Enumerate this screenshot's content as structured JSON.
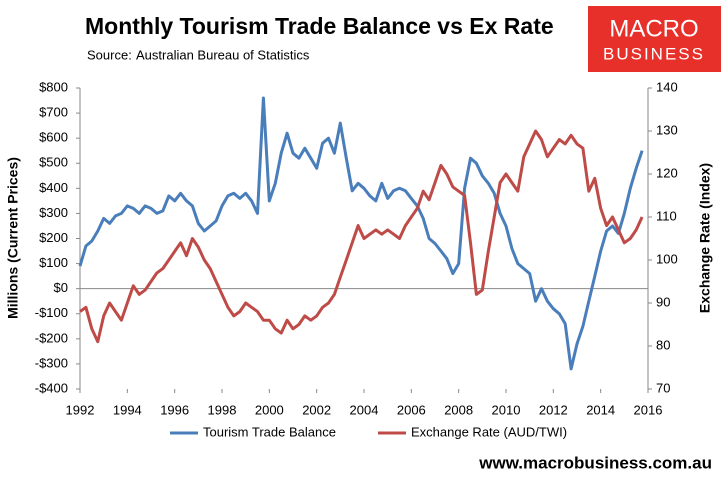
{
  "chart_data": {
    "type": "line",
    "title": "Monthly Tourism Trade Balance vs Ex Rate",
    "source_label": "Source:",
    "source": "Australian Bureau of Statistics",
    "logo": [
      "MACRO",
      "BUSINESS"
    ],
    "footer": "www.macrobusiness.com.au",
    "y_label": "Millions (Current Prices)",
    "y2_label": "Exchange Rate (Index)",
    "xlim": [
      1992,
      2016
    ],
    "xticks": [
      1992,
      1994,
      1996,
      1998,
      2000,
      2002,
      2004,
      2006,
      2008,
      2010,
      2012,
      2014,
      2016
    ],
    "ylim": [
      -400,
      800
    ],
    "yticks": [
      {
        "value": -400,
        "label": "-$400"
      },
      {
        "value": -300,
        "label": "-$300"
      },
      {
        "value": -200,
        "label": "-$200"
      },
      {
        "value": -100,
        "label": "-$100"
      },
      {
        "value": 0,
        "label": "$0"
      },
      {
        "value": 100,
        "label": "$100"
      },
      {
        "value": 200,
        "label": "$200"
      },
      {
        "value": 300,
        "label": "$300"
      },
      {
        "value": 400,
        "label": "$400"
      },
      {
        "value": 500,
        "label": "$500"
      },
      {
        "value": 600,
        "label": "$600"
      },
      {
        "value": 700,
        "label": "$700"
      },
      {
        "value": 800,
        "label": "$800"
      }
    ],
    "y2lim": [
      70,
      140
    ],
    "y2ticks": [
      70,
      80,
      90,
      100,
      110,
      120,
      130,
      140
    ],
    "legend": "bottom",
    "x": [
      1992,
      1992.25,
      1992.5,
      1992.75,
      1993,
      1993.25,
      1993.5,
      1993.75,
      1994,
      1994.25,
      1994.5,
      1994.75,
      1995,
      1995.25,
      1995.5,
      1995.75,
      1996,
      1996.25,
      1996.5,
      1996.75,
      1997,
      1997.25,
      1997.5,
      1997.75,
      1998,
      1998.25,
      1998.5,
      1998.75,
      1999,
      1999.25,
      1999.5,
      1999.75,
      2000,
      2000.25,
      2000.5,
      2000.75,
      2001,
      2001.25,
      2001.5,
      2001.75,
      2002,
      2002.25,
      2002.5,
      2002.75,
      2003,
      2003.25,
      2003.5,
      2003.75,
      2004,
      2004.25,
      2004.5,
      2004.75,
      2005,
      2005.25,
      2005.5,
      2005.75,
      2006,
      2006.25,
      2006.5,
      2006.75,
      2007,
      2007.25,
      2007.5,
      2007.75,
      2008,
      2008.25,
      2008.5,
      2008.75,
      2009,
      2009.25,
      2009.5,
      2009.75,
      2010,
      2010.25,
      2010.5,
      2010.75,
      2011,
      2011.25,
      2011.5,
      2011.75,
      2012,
      2012.25,
      2012.5,
      2012.75,
      2013,
      2013.25,
      2013.5,
      2013.75,
      2014,
      2014.25,
      2014.5,
      2014.75,
      2015,
      2015.25,
      2015.5,
      2015.75
    ],
    "series": [
      {
        "name": "Tourism Trade Balance",
        "color": "#4a7ebb",
        "values": [
          90,
          170,
          190,
          230,
          280,
          260,
          290,
          300,
          330,
          320,
          300,
          330,
          320,
          300,
          310,
          370,
          350,
          380,
          350,
          330,
          260,
          230,
          250,
          270,
          330,
          370,
          380,
          360,
          380,
          350,
          300,
          760,
          350,
          420,
          540,
          620,
          540,
          520,
          560,
          520,
          480,
          580,
          600,
          540,
          660,
          520,
          390,
          420,
          400,
          370,
          350,
          420,
          360,
          390,
          400,
          390,
          360,
          330,
          280,
          200,
          180,
          150,
          120,
          60,
          100,
          400,
          520,
          500,
          450,
          420,
          380,
          300,
          250,
          160,
          100,
          80,
          60,
          -50,
          0,
          -50,
          -80,
          -100,
          -140,
          -320,
          -220,
          -150,
          -50,
          50,
          150,
          230,
          250,
          220,
          300,
          400,
          480,
          550
        ]
      },
      {
        "name": "Exchange Rate (AUD/TWI)",
        "color": "#be4b48",
        "axis": "y2",
        "values": [
          88,
          89,
          84,
          81,
          87,
          90,
          88,
          86,
          90,
          94,
          92,
          93,
          95,
          97,
          98,
          100,
          102,
          104,
          101,
          105,
          103,
          100,
          98,
          95,
          92,
          89,
          87,
          88,
          90,
          89,
          88,
          86,
          86,
          84,
          83,
          86,
          84,
          85,
          87,
          86,
          87,
          89,
          90,
          92,
          96,
          100,
          104,
          108,
          105,
          106,
          107,
          106,
          107,
          106,
          105,
          108,
          110,
          112,
          116,
          114,
          118,
          122,
          120,
          117,
          116,
          115,
          104,
          92,
          93,
          102,
          110,
          118,
          120,
          118,
          116,
          124,
          127,
          130,
          128,
          124,
          126,
          128,
          127,
          129,
          127,
          126,
          116,
          119,
          112,
          108,
          110,
          107,
          104,
          105,
          107,
          110
        ]
      }
    ]
  }
}
